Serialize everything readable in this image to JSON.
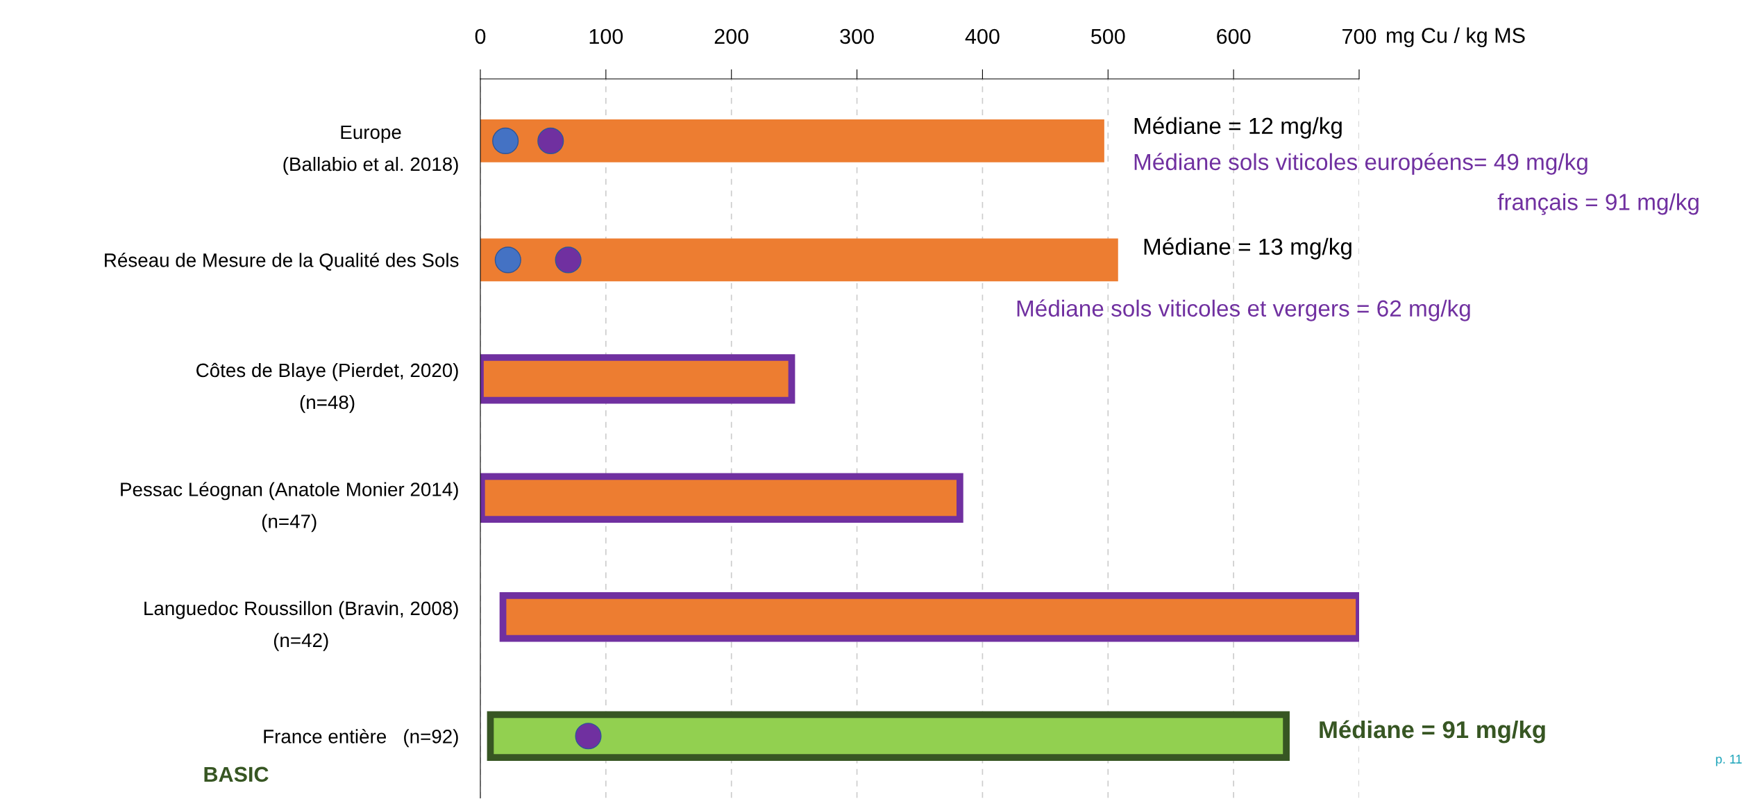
{
  "chart_data": {
    "type": "bar",
    "orientation": "horizontal",
    "xlabel": "mg Cu / kg MS",
    "categories": [
      "Europe\n(Ballabio et al. 2018)",
      "Réseau de Mesure de la Qualité des Sols",
      "Côtes de Blaye (Pierdet, 2020)\n(n=48)",
      "Pessac Léognan (Anatole Monier 2014)\n(n=47)",
      "Languedoc Roussillon (Bravin, 2008)\n(n=42)",
      "France entière   (n=92)"
    ],
    "xlim": [
      0,
      700
    ],
    "xticks": [
      0,
      100,
      200,
      300,
      400,
      500,
      600,
      700
    ],
    "grid": "x",
    "marker": "circle",
    "series": [
      {
        "colors": [
          "#ed7d31",
          "#ed7d31",
          "#ed7d31",
          "#ed7d31",
          "#ed7d31",
          "#92d050"
        ],
        "base": [
          0,
          0,
          0,
          1,
          18,
          8
        ],
        "values": [
          497,
          508,
          248,
          381,
          682,
          634
        ]
      },
      {
        "type": "scatter",
        "color": "#4472c4",
        "values": [
          20,
          22,
          null,
          null,
          null,
          null
        ]
      },
      {
        "type": "scatter",
        "color": "#7030a0",
        "values": [
          56,
          70,
          null,
          null,
          null,
          null
        ]
      },
      {
        "type": "scatter",
        "color": "#7030a0",
        "values": [
          null,
          null,
          null,
          null,
          null,
          86
        ]
      }
    ],
    "annotations": [
      "Médiane = 12 mg/kg",
      "Médiane sols viticoles européens= 49 mg/kg",
      "français = 91 mg/kg",
      "Médiane = 13 mg/kg",
      "Médiane sols viticoles et vergers = 62 mg/kg",
      "Médiane = 91 mg/kg",
      "BASIC",
      "p. 11"
    ]
  }
}
